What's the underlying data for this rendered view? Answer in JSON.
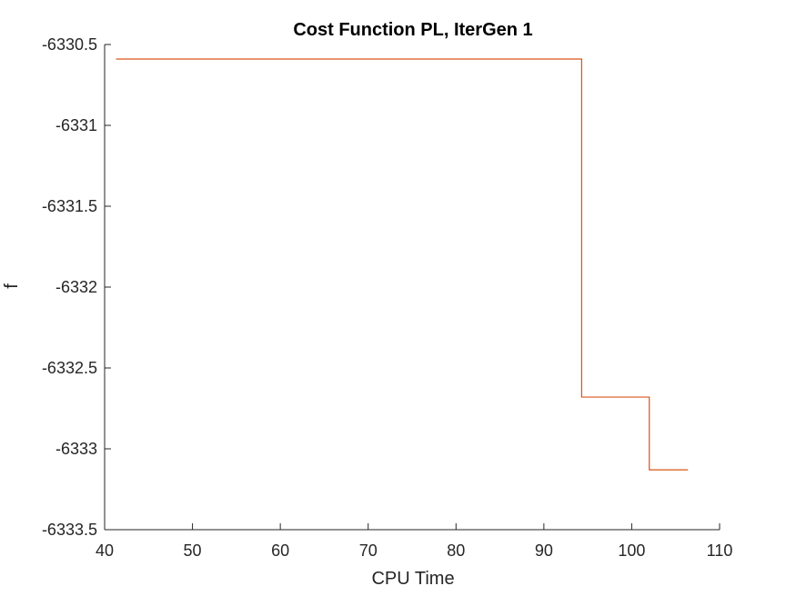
{
  "chart_data": {
    "type": "line",
    "title": "Cost Function PL, IterGen 1",
    "xlabel": "CPU Time",
    "ylabel": "f",
    "xlim": [
      40,
      110
    ],
    "ylim": [
      -6333.5,
      -6330.5
    ],
    "xticks": [
      40,
      50,
      60,
      70,
      80,
      90,
      100,
      110
    ],
    "xtick_labels": [
      "40",
      "50",
      "60",
      "70",
      "80",
      "90",
      "100",
      "110"
    ],
    "yticks": [
      -6333.5,
      -6333,
      -6332.5,
      -6332,
      -6331.5,
      -6331,
      -6330.5
    ],
    "ytick_labels": [
      "-6333.5",
      "-6333",
      "-6332.5",
      "-6332",
      "-6331.5",
      "-6331",
      "-6330.5"
    ],
    "grid": false,
    "box": false,
    "series": [
      {
        "color": "#d95319",
        "step": true,
        "x": [
          41.3,
          94.3,
          94.3,
          102.0,
          102.0,
          106.4
        ],
        "y": [
          -6330.59,
          -6330.59,
          -6332.68,
          -6332.68,
          -6333.13,
          -6333.13
        ]
      }
    ]
  }
}
